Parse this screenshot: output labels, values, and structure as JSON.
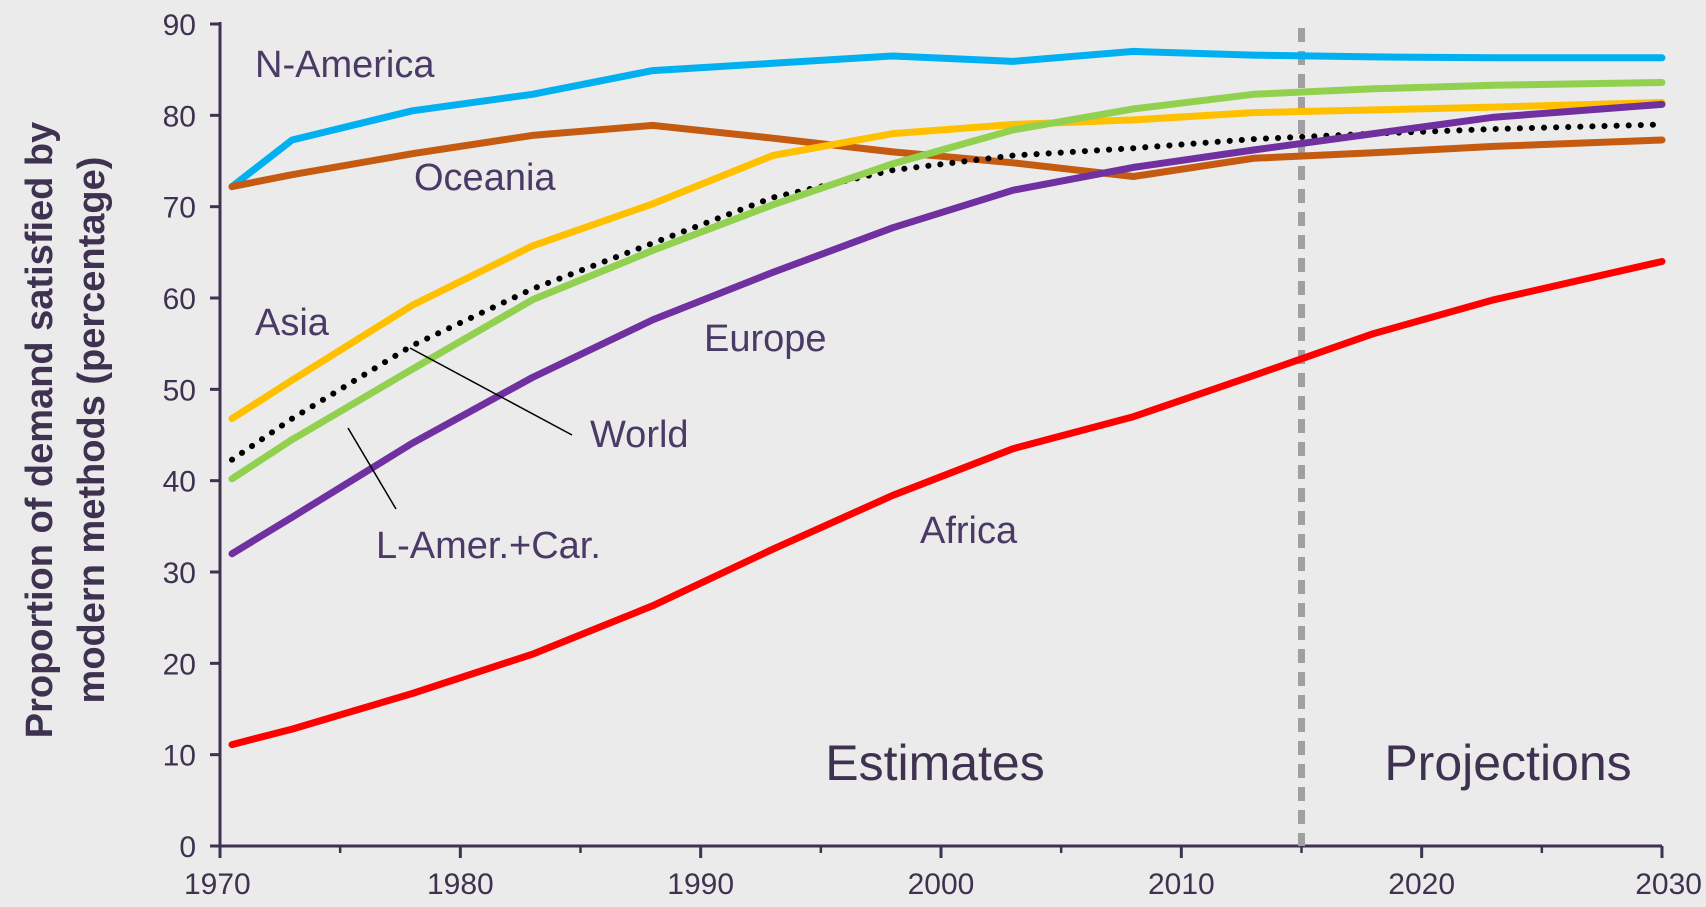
{
  "chart_data": {
    "type": "line",
    "xlabel": "",
    "ylabel": "Proportion of demand satisfied by modern methods (percentage)",
    "ylabel_lines": [
      "Proportion of demand satisfied by",
      "modern methods (percentage)"
    ],
    "xlim": [
      1970,
      2030
    ],
    "ylim": [
      0,
      90
    ],
    "x_ticks": [
      "1970",
      "1980",
      "1990",
      "2000",
      "2010",
      "2020",
      "2030"
    ],
    "y_ticks": [
      "0",
      "10",
      "20",
      "30",
      "40",
      "50",
      "60",
      "70",
      "80",
      "90"
    ],
    "grid": false,
    "projection_start": 2015,
    "region_labels": {
      "estimates": "Estimates",
      "projections": "Projections"
    },
    "x": [
      1970.5,
      1973,
      1978,
      1983,
      1988,
      1993,
      1998,
      2003,
      2008,
      2013,
      2018,
      2023,
      2030
    ],
    "series": [
      {
        "name": "N-America",
        "color": "#00b0f0",
        "dotted": false,
        "values": [
          72.2,
          77.3,
          80.5,
          82.3,
          84.9,
          85.7,
          86.5,
          85.9,
          87.0,
          86.6,
          86.4,
          86.3,
          86.3
        ]
      },
      {
        "name": "Oceania",
        "color": "#c55a11",
        "dotted": false,
        "values": [
          72.2,
          73.5,
          75.8,
          77.8,
          78.9,
          77.5,
          76.0,
          74.8,
          73.3,
          75.3,
          75.9,
          76.6,
          77.3
        ]
      },
      {
        "name": "Asia",
        "color": "#ffc000",
        "dotted": false,
        "values": [
          46.8,
          51.0,
          59.2,
          65.7,
          70.3,
          75.6,
          78.0,
          79.0,
          79.5,
          80.3,
          80.6,
          80.9,
          81.4
        ]
      },
      {
        "name": "World",
        "color": "#000000",
        "dotted": true,
        "values": [
          42.3,
          46.8,
          54.8,
          61.0,
          66.0,
          71.0,
          74.0,
          75.6,
          76.4,
          77.4,
          78.0,
          78.5,
          79.0
        ]
      },
      {
        "name": "L-Amer.+Car.",
        "color": "#92d050",
        "dotted": false,
        "values": [
          40.2,
          44.5,
          52.2,
          59.8,
          65.2,
          70.2,
          74.7,
          78.4,
          80.7,
          82.3,
          82.9,
          83.3,
          83.6
        ]
      },
      {
        "name": "Europe",
        "color": "#7030a0",
        "dotted": false,
        "values": [
          32.0,
          36.0,
          44.1,
          51.3,
          57.6,
          62.8,
          67.7,
          71.8,
          74.3,
          76.2,
          78.0,
          79.8,
          81.2
        ]
      },
      {
        "name": "Africa",
        "color": "#ff0000",
        "dotted": false,
        "values": [
          11.1,
          12.8,
          16.7,
          21.0,
          26.3,
          32.5,
          38.4,
          43.5,
          47.0,
          51.5,
          56.1,
          59.8,
          64.0
        ]
      }
    ]
  }
}
